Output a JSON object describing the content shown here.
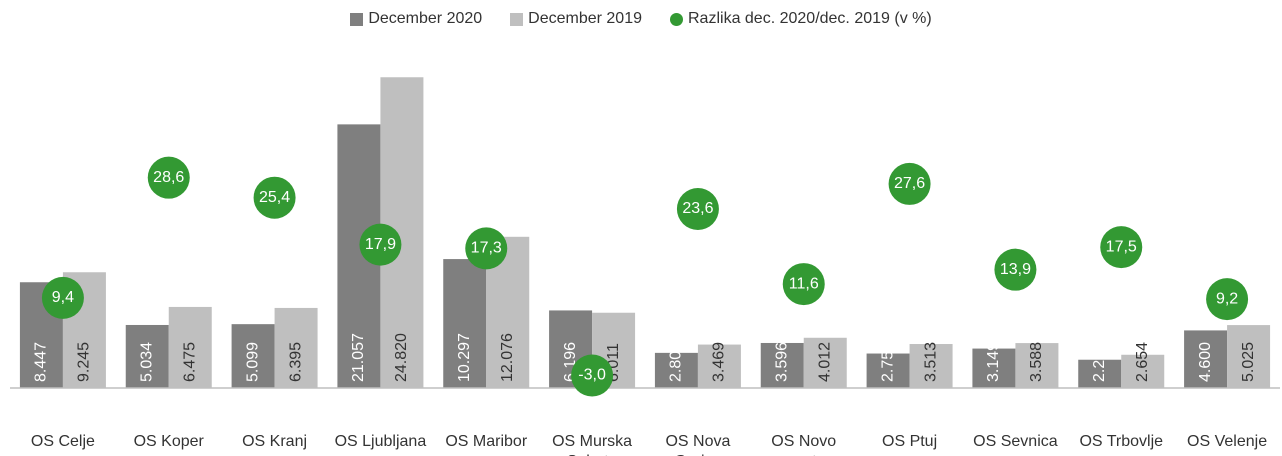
{
  "chart_data": {
    "type": "bar",
    "categories": [
      "OS Celje",
      "OS Koper",
      "OS Kranj",
      "OS Ljubljana",
      "OS Maribor",
      "OS Murska Sobota",
      "OS Nova Gorica",
      "OS Novo mesto",
      "OS Ptuj",
      "OS Sevnica",
      "OS Trbovlje",
      "OS Velenje"
    ],
    "series": [
      {
        "name": "December 2020",
        "color": "#7f7f7f",
        "values": [
          8447,
          5034,
          5099,
          21057,
          10297,
          6196,
          2806,
          3596,
          2753,
          3149,
          2258,
          4600
        ],
        "value_labels": [
          "8.447",
          "5.034",
          "5.099",
          "21.057",
          "10.297",
          "6.196",
          "2.806",
          "3.596",
          "2.753",
          "3.149",
          "2.258",
          "4.600"
        ]
      },
      {
        "name": "December 2019",
        "color": "#bfbfbf",
        "values": [
          9245,
          6475,
          6395,
          24820,
          12076,
          6011,
          3469,
          4012,
          3513,
          3588,
          2654,
          5025
        ],
        "value_labels": [
          "9.245",
          "6.475",
          "6.395",
          "24.820",
          "12.076",
          "6.011",
          "3.469",
          "4.012",
          "3.513",
          "3.588",
          "2.654",
          "5.025"
        ]
      },
      {
        "name": "Razlika dec. 2020/dec. 2019 (v %)",
        "color": "#339933",
        "axis": "y2",
        "type": "scatter",
        "values": [
          9.4,
          28.6,
          25.4,
          17.9,
          17.3,
          -3.0,
          23.6,
          11.6,
          27.6,
          13.9,
          17.5,
          9.2
        ],
        "value_labels": [
          "9,4",
          "28,6",
          "25,4",
          "17,9",
          "17,3",
          "-3,0",
          "23,6",
          "11,6",
          "27,6",
          "13,9",
          "17,5",
          "9,2"
        ]
      }
    ],
    "ylim": [
      0,
      25000
    ],
    "y2lim": [
      -5,
      45
    ],
    "legend": "top"
  }
}
